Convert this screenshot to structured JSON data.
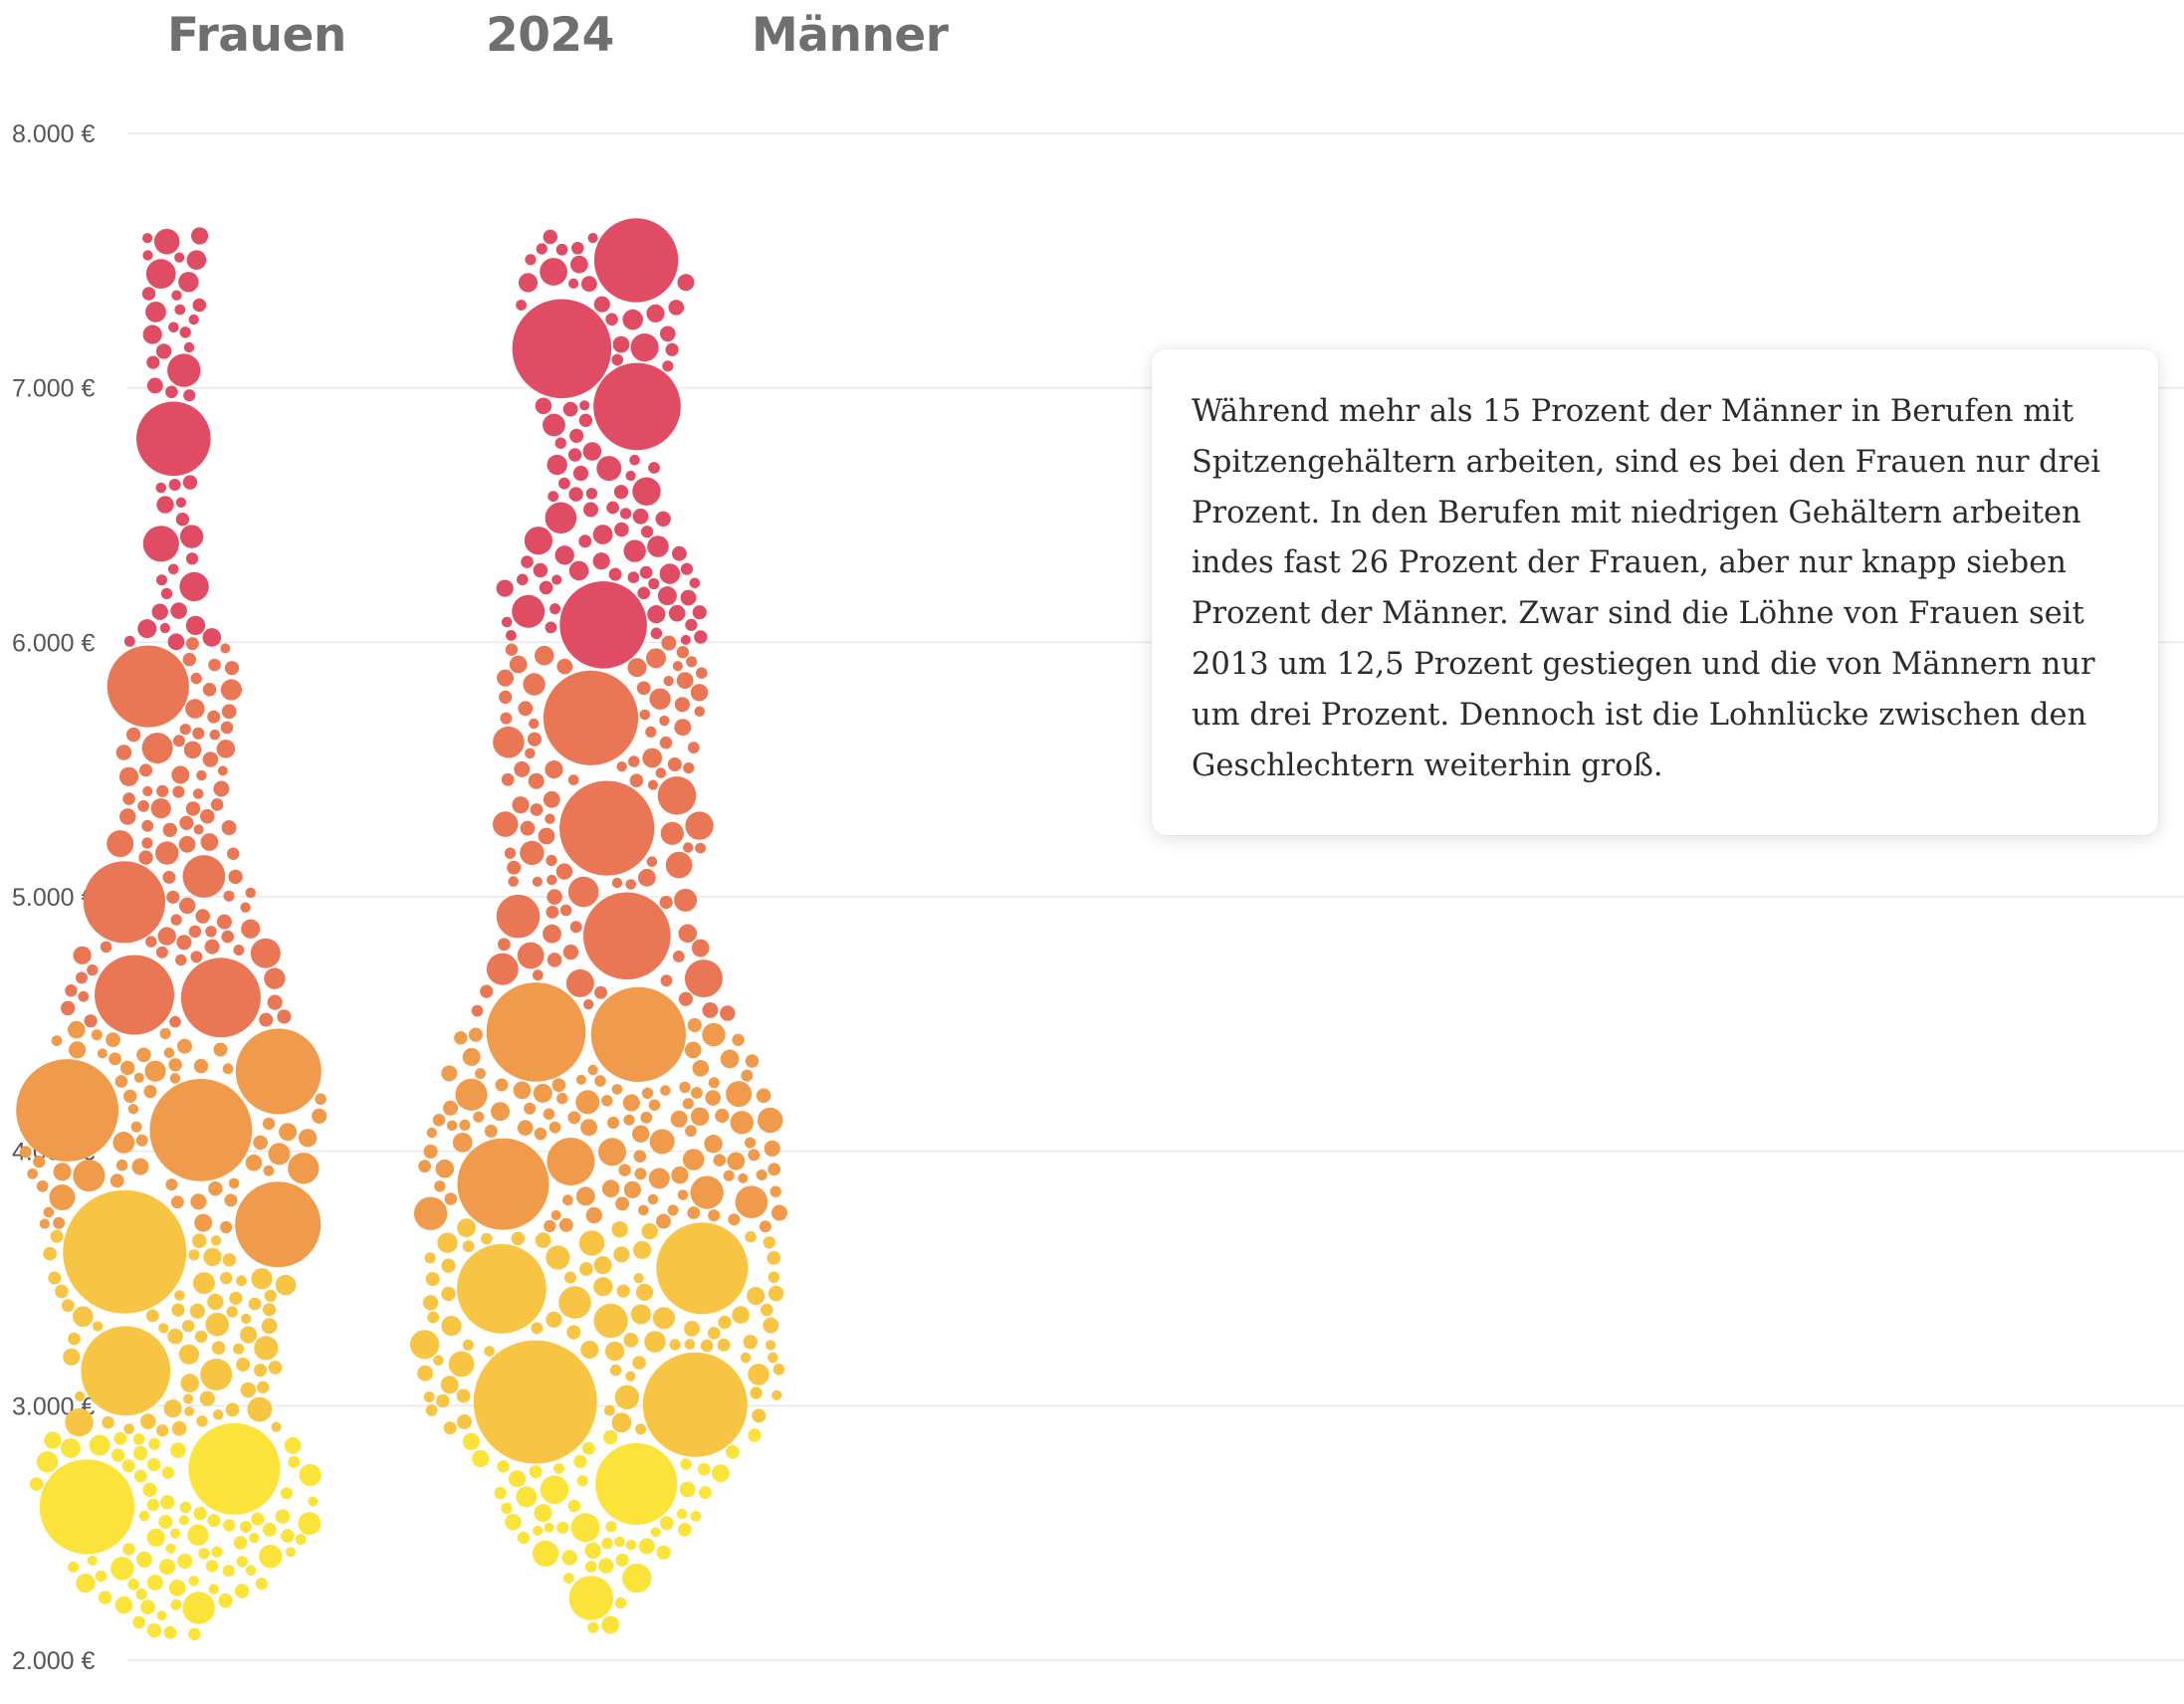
{
  "headers": {
    "left_group": "Frauen",
    "year": "2024",
    "right_group": "Männer"
  },
  "annotation": {
    "text": "Während mehr als 15 Prozent der Männer in Berufen mit Spitzengehältern arbeiten, sind es bei den Frauen nur drei Prozent. In den Berufen mit niedrigen Gehältern arbeiten indes fast 26 Prozent der Frauen, aber nur knapp sieben Prozent der Männer. Zwar sind die Löhne von Frauen seit 2013 um 12,5 Prozent gestiegen und die von Männern nur um drei Prozent. Dennoch ist die Lohnlücke zwischen den Geschlechtern weiterhin groß."
  },
  "chart_data": {
    "type": "scatter",
    "subtype": "beeswarm",
    "title": "",
    "xlabel": "",
    "ylabel": "",
    "ylim": [
      2000,
      8000
    ],
    "y_ticks": [
      {
        "value": 2000,
        "label": "2.000 €"
      },
      {
        "value": 3000,
        "label": "3.000 €"
      },
      {
        "value": 4000,
        "label": "4.000 €"
      },
      {
        "value": 5000,
        "label": "5.000 €"
      },
      {
        "value": 6000,
        "label": "6.000 €"
      },
      {
        "value": 7000,
        "label": "7.000 €"
      },
      {
        "value": 8000,
        "label": "8.000 €"
      }
    ],
    "grid": true,
    "color_scale": [
      {
        "from": 2000,
        "to": 2900,
        "color": "#fbe33a"
      },
      {
        "from": 2900,
        "to": 3700,
        "color": "#f8c443"
      },
      {
        "from": 3700,
        "to": 4500,
        "color": "#f09b4c"
      },
      {
        "from": 4500,
        "to": 6000,
        "color": "#e97756"
      },
      {
        "from": 6000,
        "to": 8000,
        "color": "#df4c63"
      }
    ],
    "series": [
      {
        "name": "Frauen",
        "distribution": [
          {
            "from": 2000,
            "to": 2500,
            "share": 7
          },
          {
            "from": 2500,
            "to": 3000,
            "share": 19
          },
          {
            "from": 3000,
            "to": 3500,
            "share": 15
          },
          {
            "from": 3500,
            "to": 4000,
            "share": 19
          },
          {
            "from": 4000,
            "to": 4500,
            "share": 16
          },
          {
            "from": 4500,
            "to": 5000,
            "share": 10
          },
          {
            "from": 5000,
            "to": 5500,
            "share": 6
          },
          {
            "from": 5500,
            "to": 6000,
            "share": 5
          },
          {
            "from": 6000,
            "to": 7500,
            "share": 3
          }
        ],
        "largest_bubbles": [
          {
            "value": 3650,
            "size": 1.0
          },
          {
            "value": 4130,
            "size": 0.72
          },
          {
            "value": 4200,
            "size": 0.72
          },
          {
            "value": 4040,
            "size": 0.7
          },
          {
            "value": 4260,
            "size": 0.62
          },
          {
            "value": 2620,
            "size": 0.62
          },
          {
            "value": 2720,
            "size": 0.58
          },
          {
            "value": 3120,
            "size": 0.55
          },
          {
            "value": 4320,
            "size": 0.5
          },
          {
            "value": 3720,
            "size": 0.5
          },
          {
            "value": 4990,
            "size": 0.45
          },
          {
            "value": 5830,
            "size": 0.45
          },
          {
            "value": 4610,
            "size": 0.42
          },
          {
            "value": 4570,
            "size": 0.42
          },
          {
            "value": 6790,
            "size": 0.35
          }
        ]
      },
      {
        "name": "Männer",
        "distribution": [
          {
            "from": 2000,
            "to": 2500,
            "share": 1
          },
          {
            "from": 2500,
            "to": 3000,
            "share": 6
          },
          {
            "from": 3000,
            "to": 3500,
            "share": 15
          },
          {
            "from": 3500,
            "to": 4000,
            "share": 16
          },
          {
            "from": 4000,
            "to": 4500,
            "share": 16
          },
          {
            "from": 4500,
            "to": 5000,
            "share": 12
          },
          {
            "from": 5000,
            "to": 5500,
            "share": 11
          },
          {
            "from": 5500,
            "to": 6000,
            "share": 8
          },
          {
            "from": 6000,
            "to": 6500,
            "share": 6
          },
          {
            "from": 6500,
            "to": 7000,
            "share": 4
          },
          {
            "from": 7000,
            "to": 7600,
            "share": 5
          }
        ],
        "largest_bubbles": [
          {
            "value": 2960,
            "size": 1.0
          },
          {
            "value": 2990,
            "size": 0.75
          },
          {
            "value": 7190,
            "size": 0.68
          },
          {
            "value": 5220,
            "size": 0.62
          },
          {
            "value": 3890,
            "size": 0.58
          },
          {
            "value": 5730,
            "size": 0.62
          },
          {
            "value": 4520,
            "size": 0.68
          },
          {
            "value": 4430,
            "size": 0.62
          },
          {
            "value": 3580,
            "size": 0.58
          },
          {
            "value": 6120,
            "size": 0.52
          },
          {
            "value": 4890,
            "size": 0.52
          },
          {
            "value": 6980,
            "size": 0.52
          },
          {
            "value": 3410,
            "size": 0.55
          },
          {
            "value": 2690,
            "size": 0.45
          },
          {
            "value": 7470,
            "size": 0.48
          }
        ]
      }
    ]
  }
}
